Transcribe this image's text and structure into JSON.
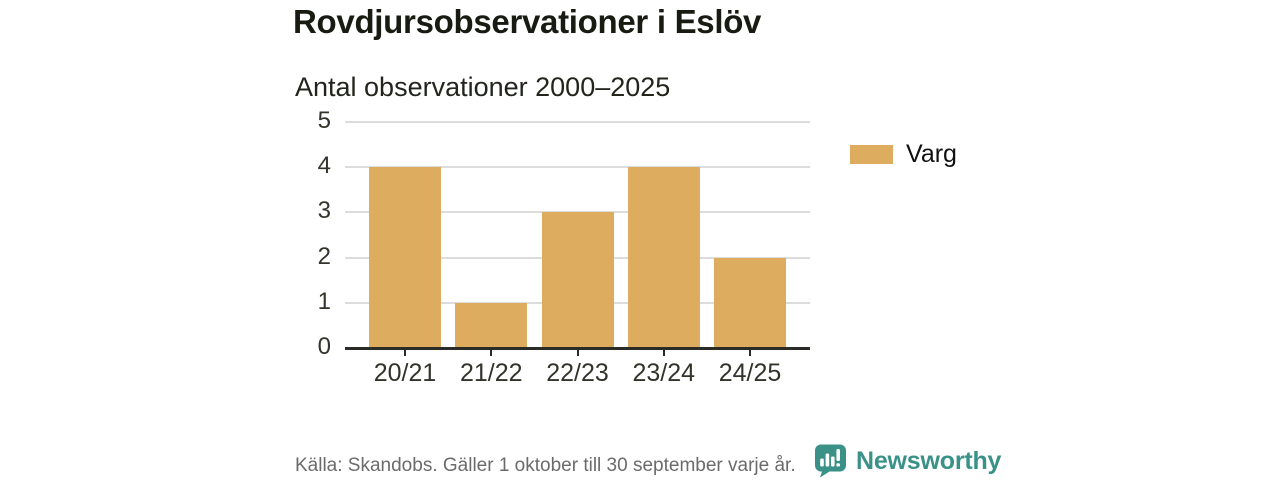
{
  "header": {
    "title": "Rovdjursobservationer i Eslöv",
    "subtitle": "Antal observationer 2000–2025"
  },
  "legend": {
    "items": [
      {
        "label": "Varg",
        "color": "#deac5e"
      }
    ]
  },
  "footer": {
    "source": "Källa: Skandobs. Gäller 1 oktober till 30 september varje år.",
    "brand": "Newsworthy"
  },
  "colors": {
    "bar": "#deac5e",
    "brand_teal": "#3a9188",
    "grid": "#dcdcdc",
    "axis": "#2b2b28",
    "title_text": "#181b12",
    "muted_text": "#6b6b6b"
  },
  "icons": {
    "logo": "newsworthy-speech-bubble-bar-chart-icon"
  },
  "chart_data": {
    "type": "bar",
    "title": "Rovdjursobservationer i Eslöv",
    "subtitle": "Antal observationer 2000–2025",
    "categories": [
      "20/21",
      "21/22",
      "22/23",
      "23/24",
      "24/25"
    ],
    "series": [
      {
        "name": "Varg",
        "values": [
          4,
          1,
          3,
          4,
          2
        ]
      }
    ],
    "xlabel": "",
    "ylabel": "",
    "ylim": [
      0,
      5
    ],
    "yticks": [
      0,
      1,
      2,
      3,
      4,
      5
    ],
    "grid": "horizontal",
    "legend_position": "right"
  }
}
